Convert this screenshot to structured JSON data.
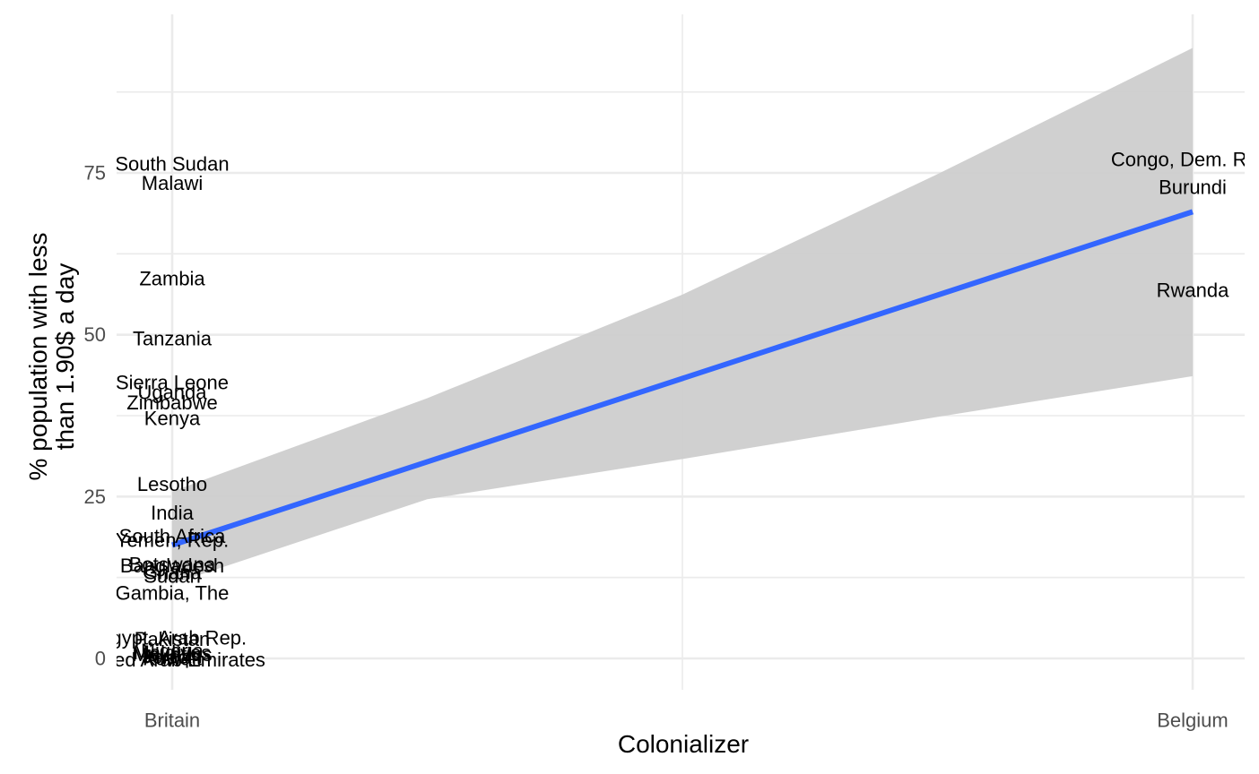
{
  "chart_data": {
    "type": "scatter",
    "xlabel": "Colonializer",
    "ylabel_lines": [
      "% population with less",
      "than 1.90$ a day"
    ],
    "categories": [
      "Britain",
      "Belgium"
    ],
    "yticks": [
      0,
      25,
      50,
      75
    ],
    "ylim": [
      -4,
      99
    ],
    "grid": true,
    "smooth_color": "#3366ff",
    "band_color": "#cccccc",
    "trend": {
      "start": {
        "x": "Britain",
        "y": 17.5
      },
      "end": {
        "x": "Belgium",
        "y": 69
      }
    },
    "confidence_band": {
      "x": [
        0,
        0.25,
        0.5,
        0.75,
        1
      ],
      "upper": [
        25.8,
        40.2,
        56.2,
        74.8,
        94.3
      ],
      "lower": [
        11.5,
        24.6,
        30.8,
        37.3,
        43.6
      ]
    },
    "points": [
      {
        "label": "South Sudan",
        "x": "Britain",
        "y": 76.4
      },
      {
        "label": "Malawi",
        "x": "Britain",
        "y": 73.4
      },
      {
        "label": "Zambia",
        "x": "Britain",
        "y": 58.7
      },
      {
        "label": "Tanzania",
        "x": "Britain",
        "y": 49.4
      },
      {
        "label": "Sierra Leone",
        "x": "Britain",
        "y": 42.6
      },
      {
        "label": "Uganda",
        "x": "Britain",
        "y": 41.1
      },
      {
        "label": "Zimbabwe",
        "x": "Britain",
        "y": 39.5
      },
      {
        "label": "Kenya",
        "x": "Britain",
        "y": 37.1
      },
      {
        "label": "Lesotho",
        "x": "Britain",
        "y": 26.9
      },
      {
        "label": "India",
        "x": "Britain",
        "y": 22.5
      },
      {
        "label": "South Africa",
        "x": "Britain",
        "y": 18.9
      },
      {
        "label": "Yemen, Rep.",
        "x": "Britain",
        "y": 18.3
      },
      {
        "label": "Botswana",
        "x": "Britain",
        "y": 14.5
      },
      {
        "label": "Bangladesh",
        "x": "Britain",
        "y": 14.3
      },
      {
        "label": "Ghana",
        "x": "Britain",
        "y": 13.3
      },
      {
        "label": "Sudan",
        "x": "Britain",
        "y": 12.7
      },
      {
        "label": "Gambia, The",
        "x": "Britain",
        "y": 10.1
      },
      {
        "label": "Egypt, Arab Rep.",
        "x": "Britain",
        "y": 3.2
      },
      {
        "label": "Pakistan",
        "x": "Britain",
        "y": 3.0
      },
      {
        "label": "Nigeria",
        "x": "Britain",
        "y": 1.2
      },
      {
        "label": "Maldives",
        "x": "Britain",
        "y": 0.9
      },
      {
        "label": "Mauritius",
        "x": "Britain",
        "y": 0.6
      },
      {
        "label": "Jordan",
        "x": "Britain",
        "y": 0.3
      },
      {
        "label": "Iraq",
        "x": "Britain",
        "y": 0.2
      },
      {
        "label": "Kuwait",
        "x": "Britain",
        "y": 0.0
      },
      {
        "label": "United Arab Emirates",
        "x": "Britain",
        "y": -0.2
      },
      {
        "label": "Congo, Dem. Rep.",
        "x": "Belgium",
        "y": 77.1
      },
      {
        "label": "Burundi",
        "x": "Belgium",
        "y": 72.8
      },
      {
        "label": "Rwanda",
        "x": "Belgium",
        "y": 56.9
      }
    ]
  }
}
